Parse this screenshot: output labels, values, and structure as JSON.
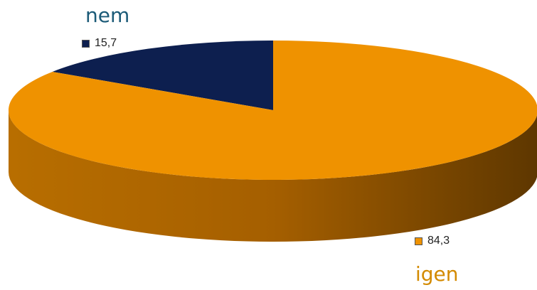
{
  "chart_data": {
    "type": "pie",
    "style": "3d",
    "slices": [
      {
        "category": "nem",
        "value_label": "15,7",
        "value": 15.7,
        "color": "#0d1f4f"
      },
      {
        "category": "igen",
        "value_label": "84,3",
        "value": 84.3,
        "color": "#ef9200"
      }
    ],
    "category_label_colors": {
      "nem": "#1b5a77",
      "igen": "#d38a00"
    }
  }
}
